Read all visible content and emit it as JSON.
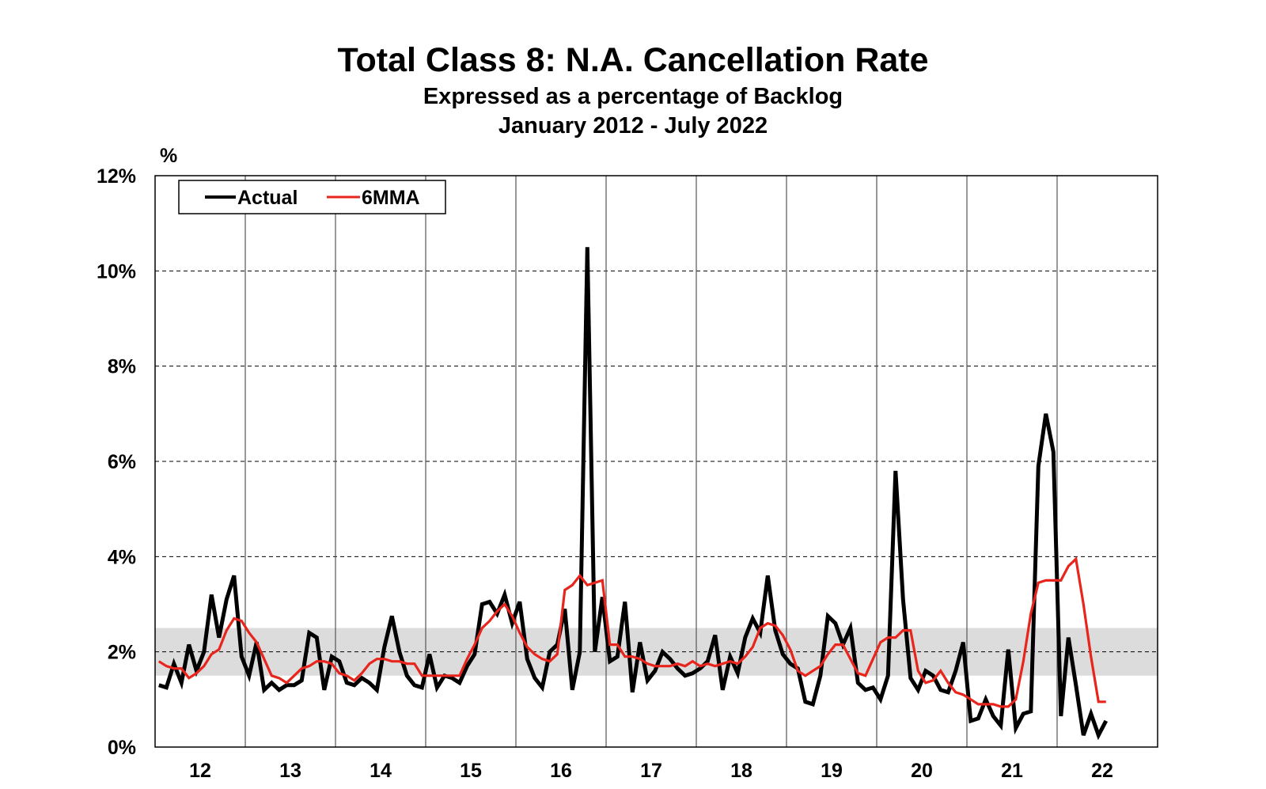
{
  "chart_data": {
    "type": "line",
    "title": "Total Class 8: N.A. Cancellation Rate",
    "subtitle": "Expressed as a percentage of Backlog",
    "date_range": "January 2012 - July 2022",
    "ylabel": "%",
    "xlabel": "",
    "ylim": [
      0,
      12
    ],
    "yticks": [
      "0%",
      "2%",
      "4%",
      "6%",
      "8%",
      "10%",
      "12%"
    ],
    "xticks": [
      "12",
      "13",
      "14",
      "15",
      "16",
      "17",
      "18",
      "19",
      "20",
      "21",
      "22"
    ],
    "grid": true,
    "shaded_band": [
      1.5,
      2.5
    ],
    "legend": {
      "placement": "top-left",
      "entries": [
        "Actual",
        "6MMA"
      ]
    },
    "start": "2012-01",
    "series": [
      {
        "name": "Actual",
        "color": "#000000",
        "values": [
          1.3,
          1.25,
          1.75,
          1.35,
          2.15,
          1.6,
          2.0,
          3.2,
          2.3,
          3.1,
          3.6,
          1.9,
          1.5,
          2.2,
          1.2,
          1.35,
          1.2,
          1.3,
          1.3,
          1.4,
          2.4,
          2.3,
          1.2,
          1.9,
          1.8,
          1.35,
          1.3,
          1.45,
          1.35,
          1.2,
          2.1,
          2.75,
          2.0,
          1.5,
          1.3,
          1.25,
          1.95,
          1.25,
          1.5,
          1.45,
          1.35,
          1.7,
          1.95,
          3.0,
          3.05,
          2.8,
          3.2,
          2.6,
          3.05,
          1.85,
          1.45,
          1.25,
          2.0,
          2.15,
          2.9,
          1.2,
          2.0,
          10.5,
          2.0,
          3.15,
          1.8,
          1.9,
          3.05,
          1.15,
          2.2,
          1.4,
          1.6,
          2.0,
          1.85,
          1.65,
          1.5,
          1.55,
          1.65,
          1.8,
          2.35,
          1.2,
          1.9,
          1.55,
          2.3,
          2.7,
          2.4,
          3.6,
          2.45,
          1.95,
          1.75,
          1.65,
          0.95,
          0.9,
          1.5,
          2.75,
          2.6,
          2.15,
          2.5,
          1.35,
          1.2,
          1.25,
          1.0,
          1.5,
          5.8,
          3.1,
          1.45,
          1.2,
          1.6,
          1.5,
          1.2,
          1.15,
          1.6,
          2.2,
          0.55,
          0.6,
          1.0,
          0.65,
          0.45,
          2.05,
          0.4,
          0.7,
          0.75,
          5.9,
          7.0,
          6.2,
          0.65,
          2.3,
          1.3,
          0.25,
          0.7,
          0.25,
          0.55
        ]
      },
      {
        "name": "6MMA",
        "color": "#e8251c",
        "values": [
          1.8,
          1.7,
          1.65,
          1.65,
          1.45,
          1.55,
          1.7,
          1.95,
          2.05,
          2.45,
          2.7,
          2.65,
          2.4,
          2.2,
          1.85,
          1.5,
          1.45,
          1.35,
          1.5,
          1.65,
          1.7,
          1.8,
          1.8,
          1.75,
          1.55,
          1.5,
          1.4,
          1.55,
          1.75,
          1.85,
          1.85,
          1.8,
          1.8,
          1.75,
          1.75,
          1.5,
          1.5,
          1.5,
          1.5,
          1.5,
          1.5,
          1.85,
          2.15,
          2.5,
          2.65,
          2.85,
          3.0,
          2.75,
          2.4,
          2.1,
          1.95,
          1.85,
          1.8,
          1.95,
          3.3,
          3.4,
          3.6,
          3.4,
          3.45,
          3.5,
          2.15,
          2.15,
          1.9,
          1.9,
          1.85,
          1.75,
          1.7,
          1.7,
          1.7,
          1.75,
          1.7,
          1.8,
          1.7,
          1.75,
          1.7,
          1.75,
          1.8,
          1.75,
          1.9,
          2.1,
          2.5,
          2.6,
          2.55,
          2.35,
          2.05,
          1.6,
          1.5,
          1.6,
          1.7,
          1.95,
          2.15,
          2.15,
          1.85,
          1.55,
          1.5,
          1.85,
          2.2,
          2.3,
          2.3,
          2.45,
          2.45,
          1.6,
          1.35,
          1.4,
          1.6,
          1.35,
          1.15,
          1.1,
          1.0,
          0.9,
          0.9,
          0.9,
          0.85,
          0.85,
          1.0,
          1.8,
          2.8,
          3.45,
          3.5,
          3.5,
          3.5,
          3.8,
          3.95,
          3.0,
          1.9,
          0.95,
          0.95
        ]
      }
    ]
  }
}
